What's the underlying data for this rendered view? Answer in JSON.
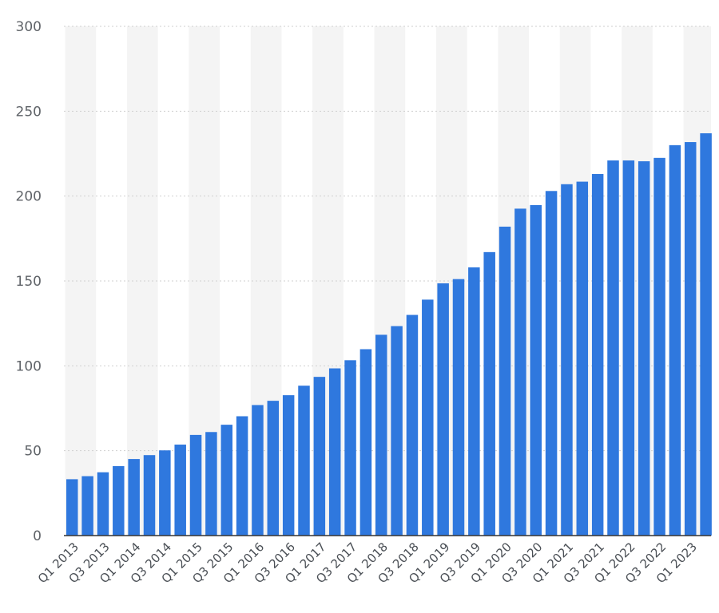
{
  "chart_data": {
    "type": "bar",
    "title": "",
    "xlabel": "",
    "ylabel": "",
    "ylim": [
      0,
      300
    ],
    "y_ticks": [
      0,
      50,
      100,
      150,
      200,
      250,
      300
    ],
    "grid": true,
    "bar_color": "#2f78de",
    "band_color": "#f4f4f4",
    "grid_color": "#cfcfcf",
    "axis_color": "#333333",
    "categories": [
      "Q1 2013",
      "Q2 2013",
      "Q3 2013",
      "Q4 2013",
      "Q1 2014",
      "Q2 2014",
      "Q3 2014",
      "Q4 2014",
      "Q1 2015",
      "Q2 2015",
      "Q3 2015",
      "Q4 2015",
      "Q1 2016",
      "Q2 2016",
      "Q3 2016",
      "Q4 2016",
      "Q1 2017",
      "Q2 2017",
      "Q3 2017",
      "Q4 2017",
      "Q1 2018",
      "Q2 2018",
      "Q3 2018",
      "Q4 2018",
      "Q1 2019",
      "Q2 2019",
      "Q3 2019",
      "Q4 2019",
      "Q1 2020",
      "Q2 2020",
      "Q3 2020",
      "Q4 2020",
      "Q1 2021",
      "Q2 2021",
      "Q3 2021",
      "Q4 2021",
      "Q1 2022",
      "Q2 2022",
      "Q3 2022",
      "Q4 2022",
      "Q1 2023",
      "Q2 2023"
    ],
    "x_tick_labels": [
      "Q1 2013",
      "Q3 2013",
      "Q1 2014",
      "Q3 2014",
      "Q1 2015",
      "Q3 2015",
      "Q1 2016",
      "Q3 2016",
      "Q1 2017",
      "Q3 2017",
      "Q1 2018",
      "Q3 2018",
      "Q1 2019",
      "Q3 2019",
      "Q1 2020",
      "Q3 2020",
      "Q1 2021",
      "Q3 2021",
      "Q1 2022",
      "Q3 2022",
      "Q1 2023"
    ],
    "values": [
      33.2,
      35.0,
      37.3,
      40.9,
      45.1,
      47.4,
      50.2,
      53.6,
      59.3,
      61.0,
      65.3,
      70.3,
      76.9,
      79.4,
      82.7,
      88.3,
      93.5,
      98.5,
      103.3,
      109.8,
      118.3,
      123.4,
      130.0,
      139.0,
      148.6,
      151.1,
      158.0,
      167.0,
      182.0,
      192.6,
      194.7,
      203.0,
      207.0,
      208.5,
      213.0,
      221.0,
      221.0,
      220.5,
      222.5,
      230.0,
      231.8,
      237.0
    ]
  }
}
